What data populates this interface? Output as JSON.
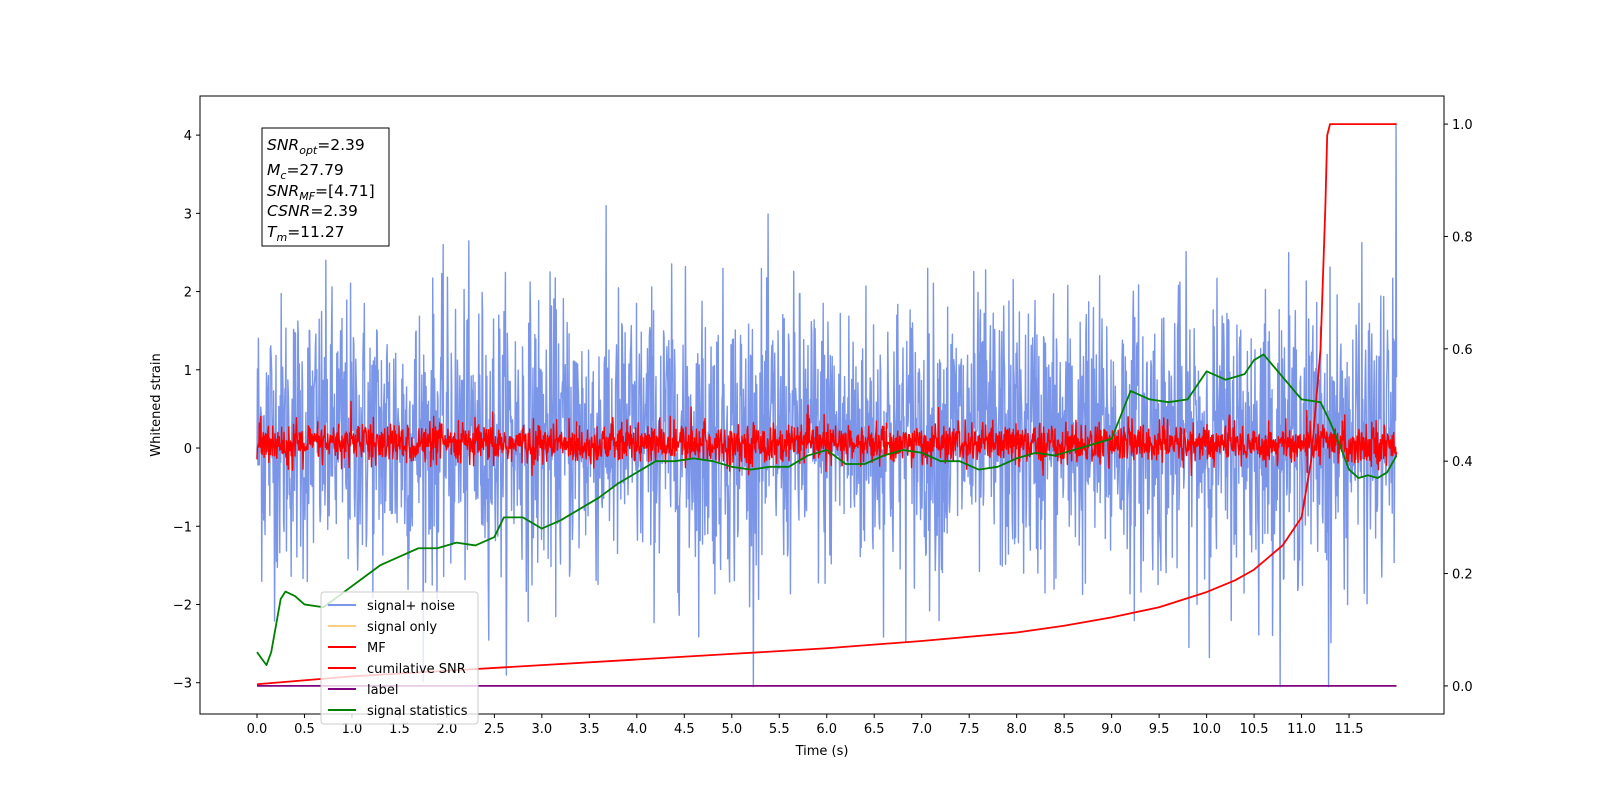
{
  "chart_data": {
    "type": "line",
    "xlabel": "Time (s)",
    "ylabel": "Whitened strain",
    "xlim": [
      -0.6,
      12.5
    ],
    "ylim": [
      -3.4,
      4.5
    ],
    "y2lim": [
      -0.05,
      1.05
    ],
    "x_ticks": [
      "0.0",
      "0.5",
      "1.0",
      "1.5",
      "2.0",
      "2.5",
      "3.0",
      "3.5",
      "4.0",
      "4.5",
      "5.0",
      "5.5",
      "6.0",
      "6.5",
      "7.0",
      "7.5",
      "8.0",
      "8.5",
      "9.0",
      "9.5",
      "10.0",
      "10.5",
      "11.0",
      "11.5"
    ],
    "y_ticks": [
      "−3",
      "−2",
      "−1",
      "0",
      "1",
      "2",
      "3",
      "4"
    ],
    "y2_ticks": [
      "0.0",
      "0.2",
      "0.4",
      "0.6",
      "0.8",
      "1.0"
    ],
    "annotation": {
      "snr_opt": {
        "base": "SNR",
        "sub": "opt",
        "value": "=2.39"
      },
      "mc": {
        "base": "M",
        "sub": "c",
        "value": "=27.79"
      },
      "snr_mf": {
        "base": "SNR",
        "sub": "MF",
        "value": "=[4.71]"
      },
      "csnr": {
        "base": "CSNR",
        "value": "=2.39"
      },
      "tm": {
        "base": "T",
        "sub": "m",
        "value": "=11.27"
      }
    },
    "legend": {
      "placement": "lower-left",
      "entries": [
        {
          "label": "signal+ noise",
          "color": "#7b96e8"
        },
        {
          "label": "signal only",
          "color": "#f8cf85"
        },
        {
          "label": "MF",
          "color": "#ff0000"
        },
        {
          "label": "cumilative SNR",
          "color": "#ff0000"
        },
        {
          "label": "label",
          "color": "#800080"
        },
        {
          "label": "signal statistics",
          "color": "#008000"
        }
      ]
    },
    "series": [
      {
        "name": "signal+ noise",
        "axis": "left",
        "color": "#7b96e8",
        "t_range": [
          0.0,
          12.0
        ],
        "mean": 0.15,
        "std": 0.9,
        "y_range": [
          -3.05,
          4.15
        ],
        "n": 2400
      },
      {
        "name": "MF",
        "axis": "left",
        "color": "#ff0000",
        "t_range": [
          0.0,
          12.0
        ],
        "mean": 0.05,
        "y_range": [
          -0.35,
          1.0
        ],
        "n": 2400
      },
      {
        "name": "cumilative SNR",
        "axis": "right",
        "color": "#ff0000",
        "x": [
          0.0,
          1.0,
          2.0,
          3.0,
          4.0,
          5.0,
          6.0,
          7.0,
          8.0,
          8.5,
          9.0,
          9.5,
          10.0,
          10.3,
          10.5,
          10.8,
          11.0,
          11.1,
          11.2,
          11.25,
          11.27,
          11.3,
          12.0
        ],
        "y": [
          0.003,
          0.017,
          0.027,
          0.037,
          0.047,
          0.057,
          0.067,
          0.08,
          0.095,
          0.107,
          0.122,
          0.14,
          0.167,
          0.188,
          0.207,
          0.25,
          0.3,
          0.4,
          0.6,
          0.85,
          0.98,
          1.0,
          1.0
        ]
      },
      {
        "name": "label",
        "axis": "right",
        "color": "#800080",
        "x": [
          0.0,
          12.0
        ],
        "y": [
          0.0,
          0.0
        ]
      },
      {
        "name": "signal statistics",
        "axis": "right",
        "color": "#008000",
        "x": [
          0.0,
          0.1,
          0.15,
          0.25,
          0.3,
          0.4,
          0.5,
          0.7,
          0.9,
          1.1,
          1.3,
          1.5,
          1.7,
          1.9,
          2.1,
          2.3,
          2.5,
          2.6,
          2.8,
          3.0,
          3.2,
          3.4,
          3.6,
          3.8,
          4.0,
          4.2,
          4.4,
          4.6,
          4.8,
          5.0,
          5.2,
          5.4,
          5.6,
          5.8,
          6.0,
          6.2,
          6.4,
          6.6,
          6.8,
          7.0,
          7.2,
          7.4,
          7.6,
          7.8,
          8.0,
          8.2,
          8.4,
          8.6,
          8.8,
          9.0,
          9.2,
          9.4,
          9.6,
          9.8,
          10.0,
          10.2,
          10.4,
          10.5,
          10.6,
          10.8,
          11.0,
          11.2,
          11.3,
          11.4,
          11.5,
          11.6,
          11.7,
          11.8,
          11.9,
          12.0
        ],
        "y": [
          0.06,
          0.037,
          0.06,
          0.155,
          0.168,
          0.16,
          0.145,
          0.14,
          0.165,
          0.19,
          0.215,
          0.23,
          0.245,
          0.245,
          0.255,
          0.25,
          0.265,
          0.3,
          0.3,
          0.28,
          0.295,
          0.315,
          0.335,
          0.36,
          0.38,
          0.4,
          0.4,
          0.405,
          0.4,
          0.39,
          0.385,
          0.39,
          0.39,
          0.41,
          0.42,
          0.395,
          0.395,
          0.41,
          0.42,
          0.415,
          0.4,
          0.4,
          0.385,
          0.39,
          0.405,
          0.415,
          0.41,
          0.42,
          0.43,
          0.44,
          0.525,
          0.51,
          0.505,
          0.51,
          0.56,
          0.545,
          0.555,
          0.58,
          0.59,
          0.55,
          0.51,
          0.505,
          0.47,
          0.43,
          0.385,
          0.37,
          0.375,
          0.37,
          0.38,
          0.41
        ]
      }
    ]
  }
}
